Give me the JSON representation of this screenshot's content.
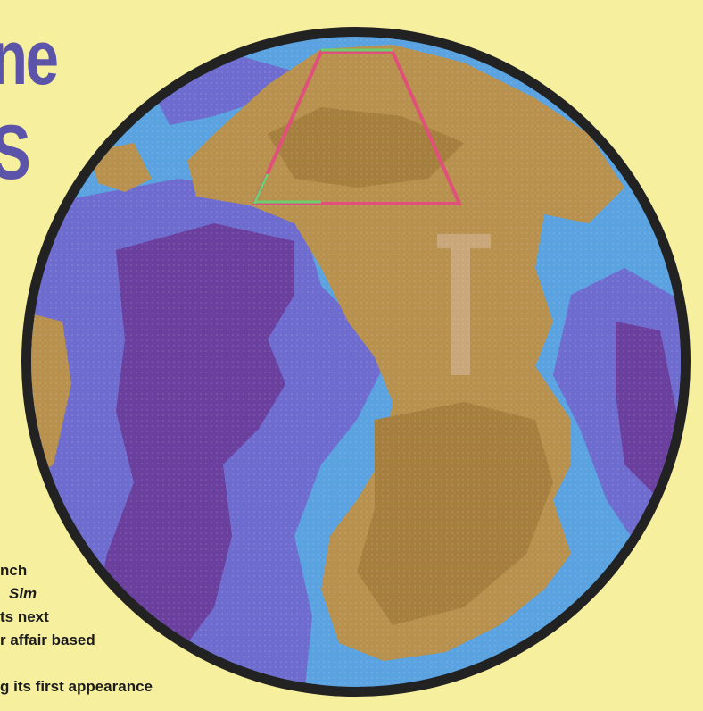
{
  "headline": {
    "line1": "ne",
    "line2": "S"
  },
  "caption": {
    "lines": [
      "nch",
      "Sim",
      "ts next",
      "r affair based",
      "g its first appearance"
    ]
  },
  "colors": {
    "background": "#f6ef9e",
    "ocean_deep": "#6a3f9e",
    "ocean_mid": "#6e6ccf",
    "ocean_shallow": "#5aa3e0",
    "land": "#b8914e",
    "land_dark": "#a67f3f",
    "rim": "#222222",
    "cursor_magenta": "#e0507a",
    "cursor_green": "#6bcf6b"
  },
  "icons": {
    "globe": "planet-globe-icon",
    "cursor": "selection-trapezoid-cursor"
  }
}
